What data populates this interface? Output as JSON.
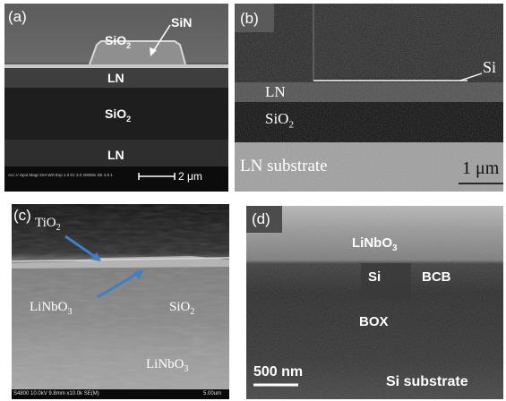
{
  "panel_a": {
    "label": "(a)",
    "sin": "SiN",
    "sio2_top": {
      "base": "SiO",
      "sub": "2"
    },
    "ln_top": "LN",
    "sio2_mid": {
      "base": "SiO",
      "sub": "2"
    },
    "ln_bottom": "LN",
    "databar": "Acc.V  Spot Magn   Det  WD  Exp    1.0 kV 3.0  20000x  SE  4.9  1",
    "scale": "2 μm"
  },
  "panel_b": {
    "label": "(b)",
    "si": "Si",
    "ln": "LN",
    "sio2": {
      "base": "SiO",
      "sub": "2"
    },
    "substrate": "LN substrate",
    "scale": "1 μm"
  },
  "panel_c": {
    "label": "(c)",
    "tio2": {
      "base": "TiO",
      "sub": "2"
    },
    "linbo3_top": {
      "base": "LiNbO",
      "sub": "3"
    },
    "sio2": {
      "base": "SiO",
      "sub": "2"
    },
    "linbo3_bottom": {
      "base": "LiNbO",
      "sub": "3"
    },
    "databar": "S4800 10.0kV 9.8mm x10.0k SE(M)",
    "scale": "5.00um"
  },
  "panel_d": {
    "label": "(d)",
    "linbo3": {
      "base": "LiNbO",
      "sub": "3"
    },
    "si": "Si",
    "bcb": "BCB",
    "box": "BOX",
    "scale": "500 nm",
    "substrate": "Si substrate"
  },
  "colors": {
    "arrow_blue": "#3f7fc4",
    "white": "#ffffff"
  }
}
